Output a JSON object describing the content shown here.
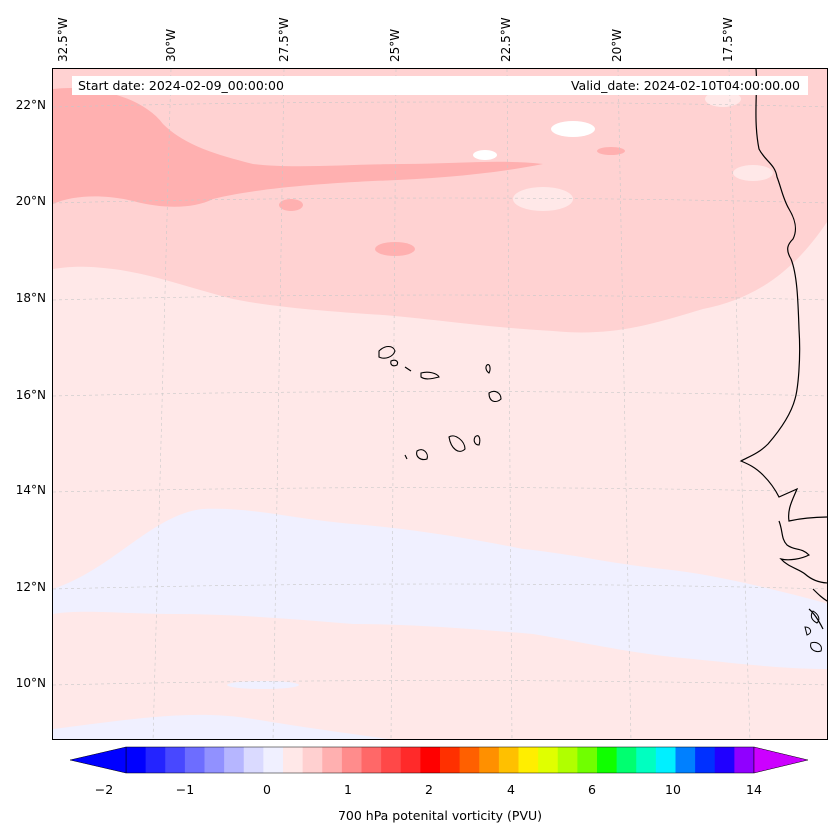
{
  "header": {
    "start_date": "Start date: 2024-02-09_00:00:00",
    "valid_date": "Valid_date: 2024-02-10T04:00:00.00"
  },
  "axes": {
    "longitude_labels": [
      "32.5°W",
      "30°W",
      "27.5°W",
      "25°W",
      "22.5°W",
      "20°W",
      "17.5°W"
    ],
    "latitude_labels": [
      "22°N",
      "20°N",
      "18°N",
      "16°N",
      "14°N",
      "12°N",
      "10°N"
    ]
  },
  "colorbar": {
    "label": "700 hPa potenital vorticity (PVU)",
    "tick_labels": [
      "−2",
      "−1",
      "0",
      "1",
      "2",
      "4",
      "6",
      "10",
      "14"
    ],
    "colors": [
      "#0000ff",
      "#2424ff",
      "#4848ff",
      "#6d6dff",
      "#9191ff",
      "#b6b6ff",
      "#dadaff",
      "#f0f0ff",
      "#ffe8e8",
      "#ffd0d0",
      "#ffb0b0",
      "#ff8c8c",
      "#ff6868",
      "#ff4848",
      "#ff2a2a",
      "#ff0000",
      "#ff3000",
      "#ff6000",
      "#ff9000",
      "#ffc000",
      "#ffee00",
      "#e0ff00",
      "#b0ff00",
      "#70ff00",
      "#10ff00",
      "#00ff70",
      "#00ffc0",
      "#00f0ff",
      "#0080ff",
      "#0030ff",
      "#2000ff",
      "#9000ff"
    ],
    "extend_min_color": "#0000ff",
    "extend_max_color": "#cc00ff"
  },
  "map_colors": {
    "background": "#ffe8e8",
    "band_light_pink": "#ffd2d2",
    "band_medium_pink": "#ffb0b0",
    "band_lavender": "#f0f0ff",
    "white_patch": "#ffffff"
  }
}
